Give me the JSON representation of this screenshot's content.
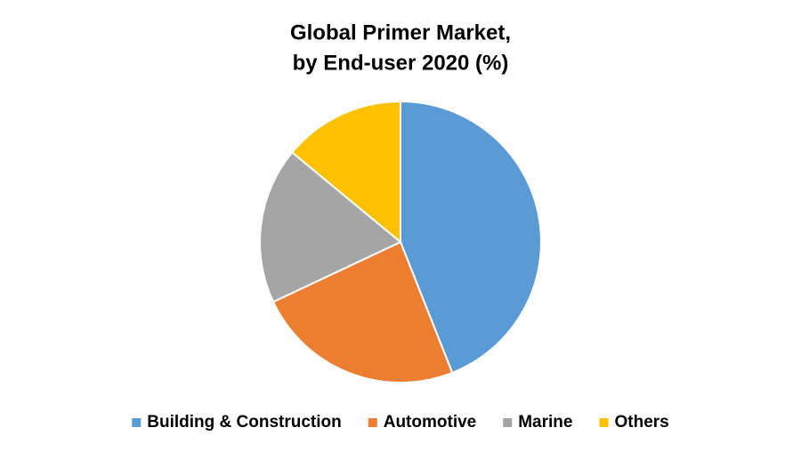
{
  "chart_data": {
    "type": "pie",
    "title": "Global Primer Market,",
    "subtitle": "by End-user 2020 (%)",
    "categories": [
      "Building & Construction",
      "Automotive",
      "Marine",
      "Others"
    ],
    "values": [
      44,
      24,
      18,
      14
    ],
    "colors": [
      "#5b9bd5",
      "#ed7d31",
      "#a5a5a5",
      "#ffc000"
    ]
  }
}
